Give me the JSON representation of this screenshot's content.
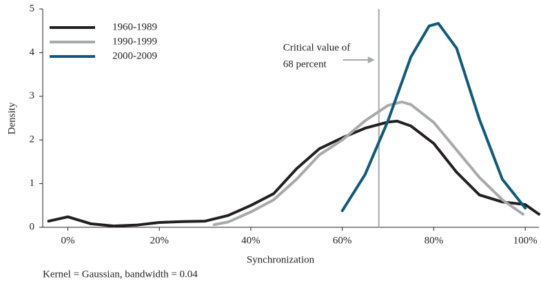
{
  "chart_data": {
    "type": "line",
    "x_label": "Synchronization",
    "y_label": "Density",
    "footnote": "Kernel = Gaussian, bandwidth = 0.04",
    "xlim": [
      -5.5,
      103
    ],
    "ylim": [
      0,
      5
    ],
    "xticks": [
      {
        "value": 0,
        "label": "0%"
      },
      {
        "value": 20,
        "label": "20%"
      },
      {
        "value": 40,
        "label": "40%"
      },
      {
        "value": 60,
        "label": "60%"
      },
      {
        "value": 80,
        "label": "80%"
      },
      {
        "value": 100,
        "label": "100%"
      }
    ],
    "yticks": [
      0,
      1,
      2,
      3,
      4,
      5
    ],
    "grid": false,
    "legend": "top-left",
    "annotation": {
      "x": 68,
      "text": [
        "Critical value of",
        "68 percent"
      ],
      "color": "#a7a9ac"
    },
    "series": [
      {
        "name": "1960-1989",
        "color": "#231f20",
        "x": [
          -4.2,
          0,
          5,
          10,
          15,
          20,
          25,
          30,
          35,
          40,
          45,
          50,
          55,
          60,
          65,
          70,
          72,
          75,
          80,
          85,
          90,
          95,
          100,
          103
        ],
        "values": [
          0.14,
          0.24,
          0.08,
          0.03,
          0.05,
          0.11,
          0.13,
          0.14,
          0.27,
          0.5,
          0.77,
          1.34,
          1.8,
          2.05,
          2.27,
          2.41,
          2.43,
          2.32,
          1.92,
          1.26,
          0.74,
          0.58,
          0.52,
          0.3
        ]
      },
      {
        "name": "1990-1999",
        "color": "#a7a9ac",
        "x": [
          32,
          35,
          40,
          45,
          50,
          55,
          60,
          65,
          70,
          73,
          75,
          80,
          85,
          90,
          95,
          99.5
        ],
        "values": [
          0.06,
          0.12,
          0.35,
          0.63,
          1.1,
          1.66,
          2.0,
          2.44,
          2.79,
          2.87,
          2.81,
          2.4,
          1.77,
          1.14,
          0.63,
          0.3
        ]
      },
      {
        "name": "2000-2009",
        "color": "#0e5a7d",
        "x": [
          60,
          65,
          70,
          75,
          79,
          81,
          85,
          90,
          95,
          100
        ],
        "values": [
          0.38,
          1.21,
          2.44,
          3.9,
          4.61,
          4.67,
          4.1,
          2.47,
          1.1,
          0.44
        ]
      }
    ]
  }
}
